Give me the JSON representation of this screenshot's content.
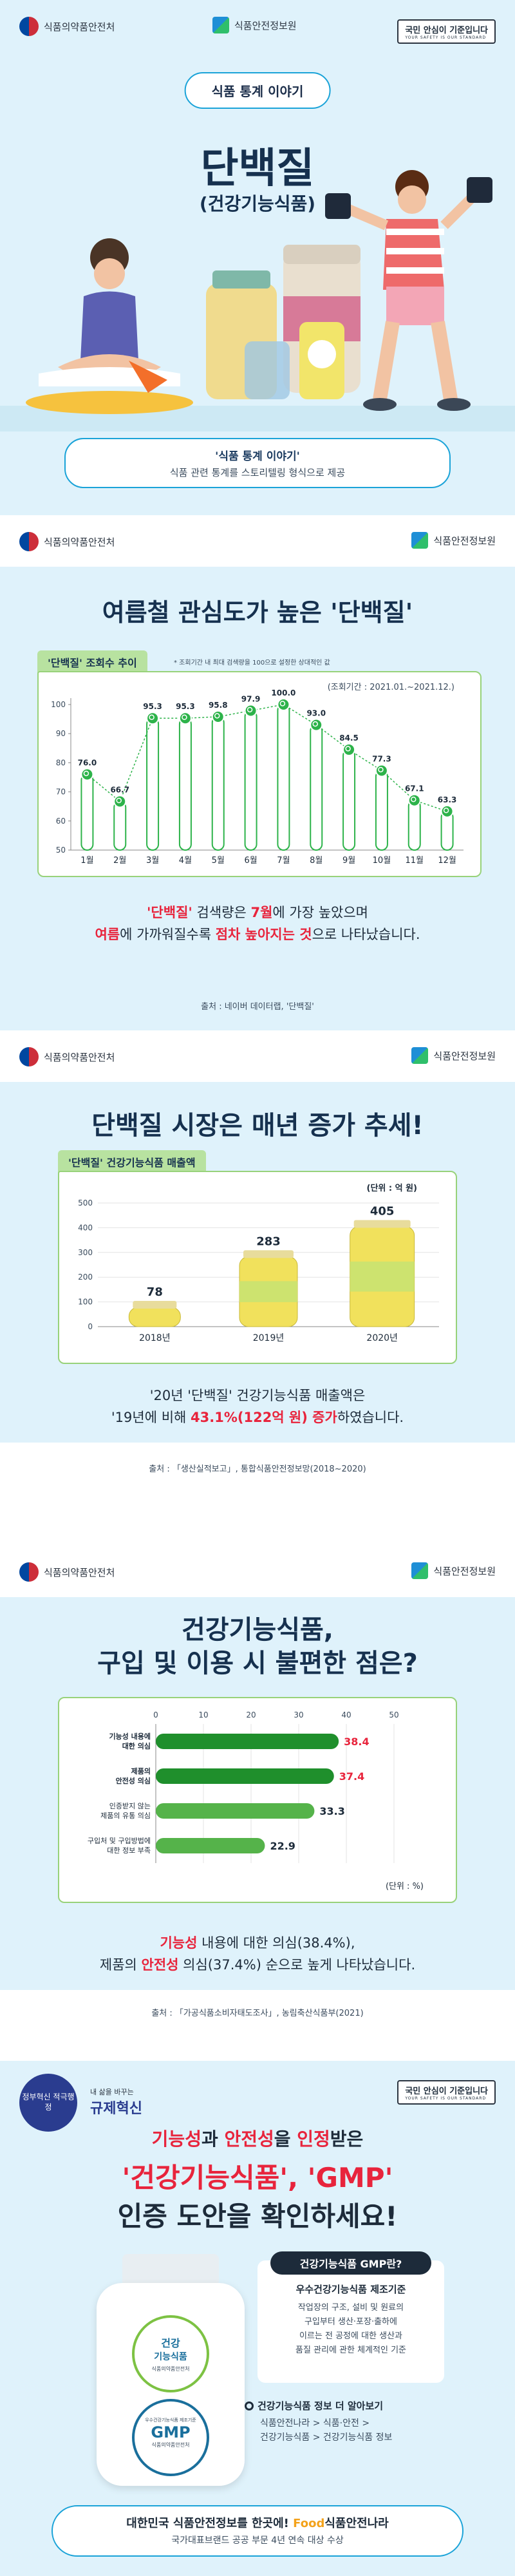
{
  "card1": {
    "org_left": "식품의약품안전처",
    "org_mid": "식품안전정보원",
    "std_badge": "국민 안심이 기준입니다",
    "std_badge_en": "YOUR SAFETY IS OUR STANDARD",
    "series_label": "식품 통계 이야기",
    "title": "단백질",
    "subtitle": "(건강기능식품)",
    "desc_title": "'식품 통계 이야기'",
    "desc_text": "식품 관련 통계를 스토리텔링 형식으로 제공"
  },
  "card2": {
    "org_left": "식품의약품안전처",
    "org_right": "식품안전정보원",
    "title": "여름철 관심도가 높은 '단백질'",
    "tag": "'단백질' 조회수 추이",
    "note": "* 조회기간 내 최대 검색량을 100으로 설정한 상대적인 값",
    "period": "(조회기간 : 2021.01.~2021.12.)",
    "caption_line1_a": "'단백질'",
    "caption_line1_b": " 검색량은 ",
    "caption_line1_c": "7월",
    "caption_line1_d": "에 가장 높았으며",
    "caption_line2_a": "여름",
    "caption_line2_b": "에 가까워질수록 ",
    "caption_line2_c": "점차 높아지는 것",
    "caption_line2_d": "으로 나타났습니다.",
    "source": "출처 : 네이버 데이터랩, '단백질'"
  },
  "card3": {
    "org_left": "식품의약품안전처",
    "org_right": "식품안전정보원",
    "title": "단백질 시장은 매년 증가 추세!",
    "tag": "'단백질' 건강기능식품 매출액",
    "unit": "(단위 : 억 원)",
    "caption_line1": "'20년 '단백질' 건강기능식품 매출액은",
    "caption_line2_a": "'19년에 비해 ",
    "caption_line2_b": "43.1%(122억 원) 증가",
    "caption_line2_c": "하였습니다.",
    "source": "출처 : 「생산실적보고」, 통합식품안전정보망(2018~2020)"
  },
  "card4": {
    "org_left": "식품의약품안전처",
    "org_right": "식품안전정보원",
    "title_line1": "건강기능식품,",
    "title_line2": "구입 및 이용 시 불편한 점은?",
    "unit": "(단위 : %)",
    "caption_line1_a": "기능성",
    "caption_line1_b": " 내용에 대한 의심(38.4%),",
    "caption_line2_a": "제품의 ",
    "caption_line2_b": "안전성",
    "caption_line2_c": " 의심(37.4%) 순으로 높게 나타났습니다.",
    "source": "출처 : 「가공식품소비자태도조사」, 농림축산식품부(2021)"
  },
  "card5": {
    "badge_left": "정부혁신 적극행정",
    "badge_mid_top": "내 삶을 바꾸는",
    "badge_mid": "규제혁신",
    "std_badge": "국민 안심이 기준입니다",
    "std_badge_en": "YOUR SAFETY IS OUR STANDARD",
    "headline_a": "기능성",
    "headline_b": "과 ",
    "headline_c": "안전성",
    "headline_d": "을 ",
    "headline_e": "인정",
    "headline_f": "받은",
    "headline_line2": "'건강기능식품', 'GMP'",
    "headline_line3": "인증 도안을 확인하세요!",
    "bottle_label1": "건강",
    "bottle_label2": "기능식품",
    "bottle_label3": "식품의약품안전처",
    "bottle_gmp_top": "우수건강기능식품 제조기준",
    "bottle_gmp": "GMP",
    "bottle_gmp_bottom": "식품의약품안전처",
    "gmp_box_title": "건강기능식품 GMP란?",
    "gmp_sub": "우수건강기능식품 제조기준",
    "gmp_desc": [
      "작업장의 구조, 설비 및 원료의",
      "구입부터 생산·포장·출하에",
      "이르는 전 공정에 대한 생산과",
      "품질 관리에 관한 체계적인 기준"
    ],
    "more_title": "건강기능식품 정보 더 알아보기",
    "more_path1": "식품안전나라 > 식품·안전 >",
    "more_path2": "건강기능식품 > 건강기능식품 정보",
    "footer_line1_a": "대한민국 식품안전정보를 한곳에!",
    "footer_brand_food": "Food",
    "footer_brand_rest": "식품안전나라",
    "footer_line2": "국가대표브랜드 공공 부문 4년 연속 대상 수상"
  },
  "chart_data": [
    {
      "type": "line",
      "title": "'단백질' 조회수 추이",
      "x": [
        "1월",
        "2월",
        "3월",
        "4월",
        "5월",
        "6월",
        "7월",
        "8월",
        "9월",
        "10월",
        "11월",
        "12월"
      ],
      "series": [
        {
          "values": [
            76.0,
            66.7,
            95.3,
            95.3,
            95.8,
            97.9,
            100.0,
            93.0,
            84.5,
            77.3,
            67.1,
            63.3
          ]
        }
      ],
      "y_ticks": [
        "50",
        "60",
        "70",
        "80",
        "90",
        "100"
      ],
      "ylim": [
        50,
        100
      ],
      "grid": false
    },
    {
      "type": "bar",
      "title": "'단백질' 건강기능식품 매출액",
      "categories": [
        "2018년",
        "2019년",
        "2020년"
      ],
      "values": [
        78,
        283,
        405
      ],
      "y_ticks": [
        "0",
        "100",
        "200",
        "300",
        "400",
        "500"
      ],
      "ylim": [
        0,
        500
      ],
      "grid": true
    },
    {
      "type": "bar",
      "orientation": "horizontal",
      "categories": [
        "기능성 내용에 대한 의심",
        "제품의 안전성 의심",
        "인증받지 않는 제품의 유통 의심",
        "구입처 및 구입방법에 대한 정보 부족"
      ],
      "values": [
        38.4,
        37.4,
        33.3,
        22.9
      ],
      "x_ticks": [
        "0",
        "10",
        "20",
        "30",
        "40",
        "50"
      ],
      "xlim": [
        0,
        50
      ],
      "grid": true,
      "colors": [
        "#1f8f2c",
        "#1f8f2c",
        "#55b34a",
        "#55b34a"
      ]
    }
  ]
}
